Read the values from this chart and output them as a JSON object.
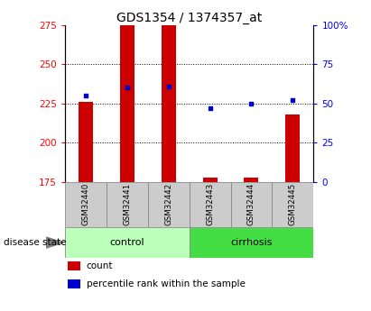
{
  "title": "GDS1354 / 1374357_at",
  "samples": [
    "GSM32440",
    "GSM32441",
    "GSM32442",
    "GSM32443",
    "GSM32444",
    "GSM32445"
  ],
  "groups": [
    {
      "name": "control",
      "indices": [
        0,
        1,
        2
      ],
      "color": "#bbffbb"
    },
    {
      "name": "cirrhosis",
      "indices": [
        3,
        4,
        5
      ],
      "color": "#44dd44"
    }
  ],
  "bar_bottom": 175,
  "bar_tops": [
    226,
    275,
    275,
    178,
    178,
    218
  ],
  "percentile_ranks": [
    55,
    60,
    61,
    47,
    50,
    52
  ],
  "ylim_left": [
    175,
    275
  ],
  "ylim_right": [
    0,
    100
  ],
  "yticks_left": [
    175,
    200,
    225,
    250,
    275
  ],
  "yticks_right": [
    0,
    25,
    50,
    75,
    100
  ],
  "ytick_right_labels": [
    "0",
    "25",
    "50",
    "75",
    "100%"
  ],
  "bar_color": "#cc0000",
  "percentile_color": "#0000cc",
  "title_fontsize": 10,
  "tick_fontsize": 7.5,
  "disease_label": "disease state",
  "legend_items": [
    {
      "label": "count",
      "color": "#cc0000"
    },
    {
      "label": "percentile rank within the sample",
      "color": "#0000cc"
    }
  ],
  "grid_yticks": [
    200,
    225,
    250
  ],
  "sample_box_color": "#cccccc",
  "sample_box_edge": "#888888"
}
